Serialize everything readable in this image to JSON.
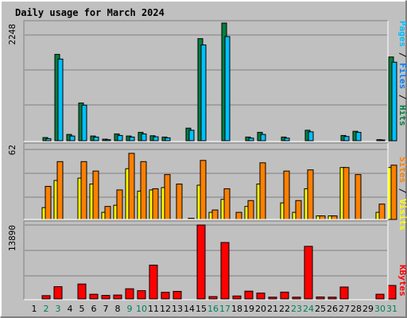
{
  "chart_data": [
    {
      "type": "bar",
      "title": "Daily usage for March 2024",
      "categories": [
        "1",
        "2",
        "3",
        "4",
        "5",
        "6",
        "7",
        "8",
        "9",
        "10",
        "11",
        "12",
        "13",
        "14",
        "15",
        "16",
        "17",
        "18",
        "19",
        "20",
        "21",
        "22",
        "23",
        "24",
        "25",
        "26",
        "27",
        "28",
        "29",
        "30",
        "31"
      ],
      "weekend_days": [
        "2",
        "3",
        "9",
        "10",
        "16",
        "17",
        "23",
        "24",
        "30",
        "31"
      ],
      "ymax_label": "2248",
      "ylim": [
        0,
        2248
      ],
      "side_labels": [
        "Pages",
        "Files",
        "Hits"
      ],
      "grid": true,
      "series": [
        {
          "name": "Hits",
          "color": "#008040",
          "values": [
            0,
            60,
            1650,
            120,
            720,
            90,
            30,
            130,
            90,
            160,
            95,
            70,
            0,
            240,
            1950,
            0,
            2248,
            0,
            70,
            160,
            0,
            70,
            0,
            200,
            0,
            0,
            100,
            180,
            0,
            20,
            1600
          ]
        },
        {
          "name": "Files",
          "color": "#00c0ff",
          "values": [
            0,
            40,
            1560,
            90,
            680,
            70,
            20,
            100,
            70,
            130,
            75,
            55,
            0,
            200,
            1830,
            0,
            1990,
            0,
            50,
            120,
            0,
            50,
            0,
            170,
            0,
            0,
            80,
            160,
            0,
            15,
            1500
          ]
        },
        {
          "name": "Pages",
          "color": "#00c0ff",
          "values": [
            0,
            0,
            0,
            0,
            0,
            0,
            0,
            0,
            0,
            0,
            0,
            0,
            0,
            0,
            0,
            0,
            0,
            0,
            0,
            0,
            0,
            0,
            0,
            0,
            0,
            0,
            0,
            0,
            0,
            0,
            0
          ]
        }
      ]
    },
    {
      "type": "bar",
      "ymax_label": "62",
      "ylim": [
        0,
        62
      ],
      "side_labels": [
        "Sites",
        "Visits"
      ],
      "grid": true,
      "series": [
        {
          "name": "Visits",
          "color": "#ffff00",
          "values": [
            0,
            10,
            33,
            0,
            35,
            30,
            6,
            12,
            43,
            24,
            25,
            27,
            0,
            0,
            29,
            6,
            17,
            0,
            11,
            30,
            0,
            14,
            6,
            26,
            3,
            3,
            44,
            0,
            0,
            6,
            44
          ]
        },
        {
          "name": "Sites",
          "color": "#ff8000",
          "values": [
            0,
            28,
            49,
            0,
            49,
            41,
            11,
            25,
            56,
            49,
            26,
            38,
            30,
            1,
            50,
            8,
            26,
            6,
            16,
            48,
            0,
            41,
            16,
            42,
            3,
            3,
            44,
            38,
            0,
            13,
            46
          ]
        }
      ]
    },
    {
      "type": "bar",
      "ymax_label": "13890",
      "ylim": [
        0,
        13890
      ],
      "side_labels": [
        "KBytes"
      ],
      "grid": true,
      "series": [
        {
          "name": "KBytes",
          "color": "#ff0000",
          "values": [
            0,
            620,
            2300,
            0,
            2800,
            880,
            660,
            730,
            1910,
            1550,
            6350,
            1240,
            1420,
            0,
            13890,
            440,
            10600,
            550,
            1460,
            1100,
            330,
            1280,
            330,
            9880,
            360,
            330,
            2240,
            0,
            0,
            880,
            2530
          ]
        }
      ]
    }
  ],
  "colors": {
    "background": "#c0c0c0",
    "title": "#0000ff",
    "weekday_label": "#000000",
    "weekend_label": "#00805c",
    "hits": "#008040",
    "files": "#00c0ff",
    "pages": "#00c0ff",
    "visits": "#ffff00",
    "sites": "#ff8000",
    "kbytes": "#ff0000",
    "separator": "#000000"
  }
}
